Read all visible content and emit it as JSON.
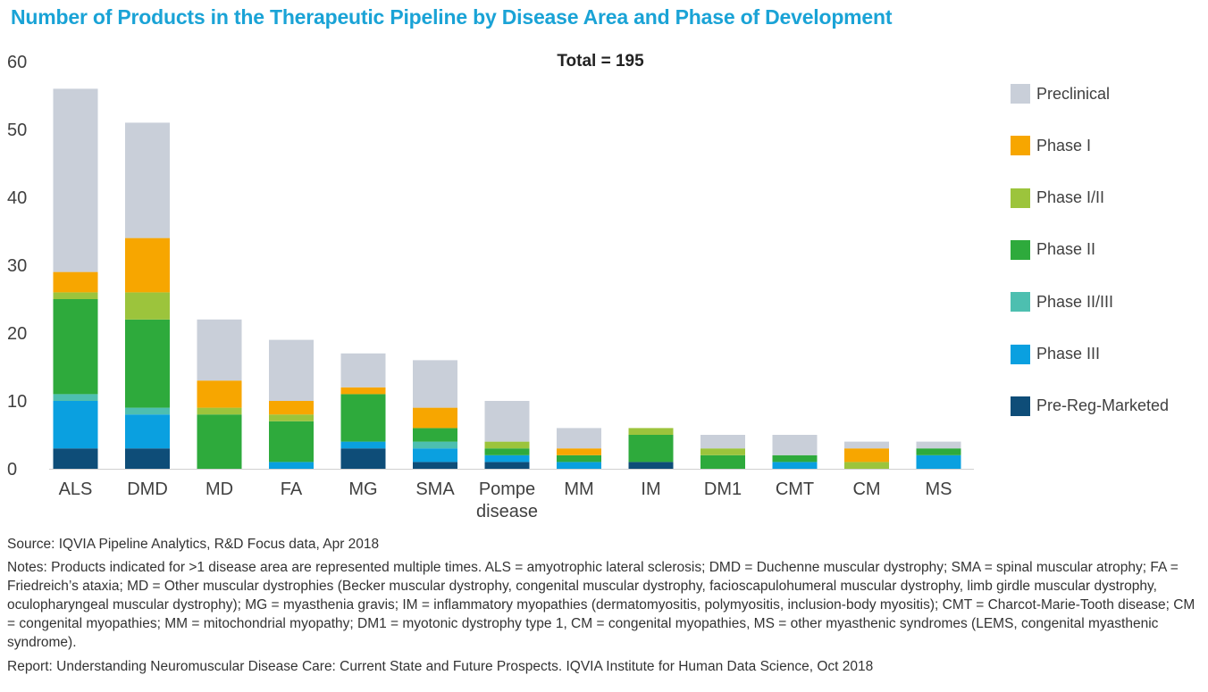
{
  "title": "Number of Products in the Therapeutic Pipeline by Disease Area and Phase of Development",
  "source": "Source: IQVIA Pipeline Analytics, R&D Focus data, Apr 2018",
  "notes": "Notes: Products indicated for >1 disease area are represented multiple times. ALS = amyotrophic lateral sclerosis; DMD = Duchenne muscular dystrophy; SMA = spinal muscular atrophy; FA = Friedreich’s ataxia; MD = Other muscular dystrophies (Becker muscular dystrophy, congenital muscular dystrophy, facioscapulohumeral muscular dystrophy, limb girdle muscular dystrophy, oculopharyngeal muscular dystrophy); MG = myasthenia gravis; IM = inflammatory myopathies (dermatomyositis, polymyositis, inclusion-body myositis); CMT = Charcot-Marie-Tooth disease; CM = congenital myopathies; MM = mitochondrial myopathy; DM1 = myotonic dystrophy type 1, CM = congenital myopathies, MS = other myasthenic syndromes (LEMS, congenital myasthenic syndrome).",
  "report": "Report: Understanding Neuromuscular Disease Care: Current State and Future Prospects. IQVIA Institute for Human Data Science, Oct 2018",
  "chart_data": {
    "type": "bar",
    "stacked": true,
    "annotation": "Total = 195",
    "categories": [
      "ALS",
      "DMD",
      "MD",
      "FA",
      "MG",
      "SMA",
      "Pompe\ndisease",
      "MM",
      "IM",
      "DM1",
      "CMT",
      "CM",
      "MS"
    ],
    "ylim": [
      0,
      60
    ],
    "yticks": [
      0,
      10,
      20,
      30,
      40,
      50,
      60
    ],
    "legend_position": "right",
    "series": [
      {
        "name": "Pre-Reg-Marketed",
        "color": "#0e4d78",
        "values": [
          3,
          3,
          0,
          0,
          3,
          1,
          1,
          0,
          1,
          0,
          0,
          0,
          0
        ]
      },
      {
        "name": "Phase III",
        "color": "#0aa0e0",
        "values": [
          7,
          5,
          0,
          1,
          1,
          2,
          1,
          1,
          0,
          0,
          1,
          0,
          2
        ]
      },
      {
        "name": "Phase II/III",
        "color": "#4dbfb0",
        "values": [
          1,
          1,
          0,
          0,
          0,
          1,
          0,
          0,
          0,
          0,
          0,
          0,
          0
        ]
      },
      {
        "name": "Phase II",
        "color": "#2eaa3c",
        "values": [
          14,
          13,
          8,
          6,
          7,
          2,
          1,
          1,
          4,
          2,
          1,
          0,
          1
        ]
      },
      {
        "name": "Phase I/II",
        "color": "#9cc43c",
        "values": [
          1,
          4,
          1,
          1,
          0,
          0,
          1,
          0,
          1,
          1,
          0,
          1,
          0
        ]
      },
      {
        "name": "Phase I",
        "color": "#f7a600",
        "values": [
          3,
          8,
          4,
          2,
          1,
          3,
          0,
          1,
          0,
          0,
          0,
          2,
          0
        ]
      },
      {
        "name": "Preclinical",
        "color": "#c9cfd9",
        "values": [
          27,
          17,
          9,
          9,
          5,
          7,
          6,
          3,
          0,
          2,
          3,
          1,
          1
        ]
      }
    ]
  }
}
